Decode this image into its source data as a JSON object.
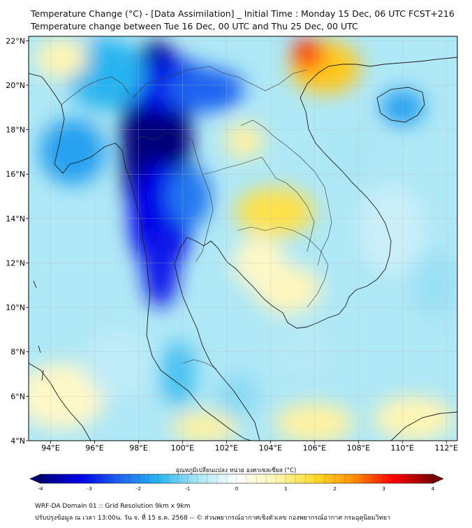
{
  "title_line1": "Temperature Change (°C) - [Data Assimilation] _ Initial Time : Monday 15 Dec, 06 UTC FCST+216",
  "title_line2": "Temperature change between Tue 16 Dec, 00 UTC and Thu 25 Dec, 00 UTC",
  "map": {
    "lon_range": [
      93,
      112.5
    ],
    "lat_range": [
      4,
      22.2
    ],
    "lon_ticks": [
      {
        "value": 94,
        "label": "94°E"
      },
      {
        "value": 96,
        "label": "96°E"
      },
      {
        "value": 98,
        "label": "98°E"
      },
      {
        "value": 100,
        "label": "100°E"
      },
      {
        "value": 102,
        "label": "102°E"
      },
      {
        "value": 104,
        "label": "104°E"
      },
      {
        "value": 106,
        "label": "106°E"
      },
      {
        "value": 108,
        "label": "108°E"
      },
      {
        "value": 110,
        "label": "110°E"
      },
      {
        "value": 112,
        "label": "112°E"
      }
    ],
    "lat_ticks": [
      {
        "value": 4,
        "label": "4°N"
      },
      {
        "value": 6,
        "label": "6°N"
      },
      {
        "value": 8,
        "label": "8°N"
      },
      {
        "value": 10,
        "label": "10°N"
      },
      {
        "value": 12,
        "label": "12°N"
      },
      {
        "value": 14,
        "label": "14°N"
      },
      {
        "value": 16,
        "label": "16°N"
      },
      {
        "value": 18,
        "label": "18°N"
      },
      {
        "value": 20,
        "label": "20°N"
      },
      {
        "value": 22,
        "label": "22°N"
      }
    ],
    "gridlines": true
  },
  "colorbar": {
    "title": "อุณหภูมิเปลี่ยนแปลง หน่วย องศาเซลเซียส (°C)",
    "min": -4,
    "max": 4,
    "ticks": [
      {
        "value": -4,
        "label": "-4"
      },
      {
        "value": -3,
        "label": "-3"
      },
      {
        "value": -2,
        "label": "-2"
      },
      {
        "value": -1,
        "label": "-1"
      },
      {
        "value": 0,
        "label": "0"
      },
      {
        "value": 1,
        "label": "1"
      },
      {
        "value": 2,
        "label": "2"
      },
      {
        "value": 3,
        "label": "3"
      },
      {
        "value": 4,
        "label": "4"
      }
    ],
    "colors": [
      "#00007a",
      "#0000e6",
      "#1e64f0",
      "#28b4f0",
      "#aae6f5",
      "#ffffff",
      "#fff5b4",
      "#ffdc28",
      "#ff8c00",
      "#ff0000",
      "#7a0000"
    ]
  },
  "footer_line1": "WRF-DA Domain 01 :: Grid Resolution 9km x 9km",
  "footer_line2": "ปรับปรุงข้อมูล ณ เวลา 13:00น. วัน จ. ที่ 15 ธ.ค. 2568 -- © ส่วนพยากรณ์อากาศเชิงตัวเลข กองพยากรณ์อากาศ กรมอุตุนิยมวิทยา",
  "field_blobs": [
    {
      "lon": 98.8,
      "lat": 17.5,
      "rlon": 1.6,
      "rlat": 4.5,
      "value": -4.0
    },
    {
      "lon": 99.3,
      "lat": 20.0,
      "rlon": 2.2,
      "rlat": 1.2,
      "value": -3.2
    },
    {
      "lon": 101.0,
      "lat": 19.8,
      "rlon": 1.8,
      "rlat": 1.0,
      "value": -2.4
    },
    {
      "lon": 99.0,
      "lat": 14.0,
      "rlon": 1.4,
      "rlat": 2.5,
      "value": -3.2
    },
    {
      "lon": 99.0,
      "lat": 11.8,
      "rlon": 0.8,
      "rlat": 1.8,
      "value": -3.0
    },
    {
      "lon": 100.3,
      "lat": 15.0,
      "rlon": 1.0,
      "rlat": 1.4,
      "value": -2.2
    },
    {
      "lon": 95.0,
      "lat": 17.0,
      "rlon": 1.5,
      "rlat": 1.5,
      "value": -1.8
    },
    {
      "lon": 96.5,
      "lat": 20.5,
      "rlon": 1.8,
      "rlat": 1.6,
      "value": -1.6
    },
    {
      "lon": 110.0,
      "lat": 19.0,
      "rlon": 1.0,
      "rlat": 0.8,
      "value": -1.8
    },
    {
      "lon": 106.5,
      "lat": 20.8,
      "rlon": 1.6,
      "rlat": 1.2,
      "value": 1.8
    },
    {
      "lon": 105.7,
      "lat": 21.4,
      "rlon": 0.7,
      "rlat": 0.7,
      "value": 3.0
    },
    {
      "lon": 104.2,
      "lat": 14.3,
      "rlon": 1.8,
      "rlat": 1.1,
      "value": 1.4
    },
    {
      "lon": 102.8,
      "lat": 17.5,
      "rlon": 0.9,
      "rlat": 0.8,
      "value": 0.9
    },
    {
      "lon": 104.8,
      "lat": 10.8,
      "rlon": 1.5,
      "rlat": 1.1,
      "value": 0.7
    },
    {
      "lon": 103.5,
      "lat": 12.0,
      "rlon": 1.2,
      "rlat": 1.2,
      "value": 0.6
    },
    {
      "lon": 94.5,
      "lat": 21.2,
      "rlon": 1.2,
      "rlat": 0.9,
      "value": 0.8
    },
    {
      "lon": 94.5,
      "lat": 6.0,
      "rlon": 2.0,
      "rlat": 1.5,
      "value": 0.6
    },
    {
      "lon": 101.0,
      "lat": 4.6,
      "rlon": 1.5,
      "rlat": 0.7,
      "value": 0.9
    },
    {
      "lon": 106.0,
      "lat": 4.8,
      "rlon": 1.8,
      "rlat": 0.9,
      "value": 0.9
    },
    {
      "lon": 110.5,
      "lat": 5.0,
      "rlon": 1.8,
      "rlat": 1.0,
      "value": 0.8
    },
    {
      "lon": 109.5,
      "lat": 13.5,
      "rlon": 1.5,
      "rlat": 2.0,
      "value": -0.5
    },
    {
      "lon": 107.5,
      "lat": 17.0,
      "rlon": 1.2,
      "rlat": 1.2,
      "value": -0.8
    },
    {
      "lon": 111.5,
      "lat": 11.0,
      "rlon": 1.0,
      "rlat": 1.5,
      "value": -0.9
    },
    {
      "lon": 105.5,
      "lat": 8.0,
      "rlon": 1.5,
      "rlat": 1.3,
      "value": -0.7
    },
    {
      "lon": 97.0,
      "lat": 7.5,
      "rlon": 1.5,
      "rlat": 1.5,
      "value": -0.6
    },
    {
      "lon": 99.8,
      "lat": 7.0,
      "rlon": 0.8,
      "rlat": 1.5,
      "value": -1.4
    },
    {
      "lon": 102.5,
      "lat": 6.0,
      "rlon": 1.0,
      "rlat": 1.0,
      "value": -1.0
    }
  ]
}
